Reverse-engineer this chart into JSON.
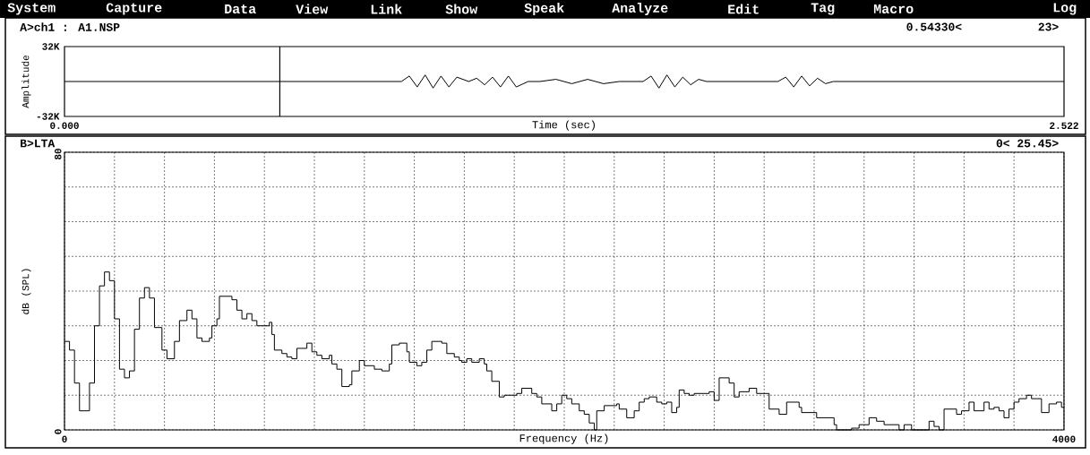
{
  "chart_data": [
    {
      "type": "line",
      "title": "A>ch1 : A1.NSP",
      "xlabel": "Time (sec)",
      "ylabel": "Amplitude",
      "color": "#000000",
      "annotations": [
        "System",
        "Capture",
        "Data",
        "View",
        "Link",
        "Show",
        "Speak",
        "Analyze",
        "Edit",
        "Tag",
        "Macro",
        "Log",
        "0.54330<",
        "23>"
      ],
      "x": [
        0,
        0.85,
        0.87,
        0.89,
        0.91,
        0.93,
        0.95,
        0.97,
        0.99,
        1.02,
        1.04,
        1.06,
        1.08,
        1.1,
        1.12,
        1.14,
        1.17,
        1.2,
        1.24,
        1.28,
        1.32,
        1.36,
        1.4,
        1.46,
        1.48,
        1.5,
        1.52,
        1.54,
        1.56,
        1.58,
        1.6,
        1.62,
        1.8,
        1.82,
        1.84,
        1.86,
        1.88,
        1.9,
        1.92,
        1.94,
        2.522
      ],
      "values": [
        0,
        0,
        5,
        -5,
        6,
        -6,
        5,
        -5,
        4,
        0,
        3,
        -3,
        4,
        -5,
        5,
        -5,
        0,
        0,
        2,
        -2,
        2,
        -2,
        0,
        0,
        5,
        -6,
        6,
        -5,
        4,
        -3,
        2,
        0,
        0,
        4,
        -5,
        5,
        -4,
        3,
        -2,
        0,
        0
      ],
      "xlim": [
        0,
        2.522
      ],
      "xticks": [
        {
          "value": 0,
          "label": "0.000"
        },
        {
          "value": 2.522,
          "label": "2.522"
        }
      ],
      "ylim": [
        -32,
        32
      ],
      "yticks": [
        {
          "value": -32,
          "label": "-32K"
        },
        {
          "value": 32,
          "label": "32K"
        }
      ],
      "ref_lines": [
        {
          "axis": "x",
          "value": 0.5433
        }
      ]
    },
    {
      "type": "step",
      "title": "B>LTA",
      "xlabel": "Frequency (Hz)",
      "ylabel": "dB (SPL)",
      "color": "#000000",
      "grid": true,
      "annotations": [
        "0< 25.45>"
      ],
      "x": [
        0,
        20,
        40,
        60,
        100,
        120,
        140,
        160,
        180,
        200,
        220,
        240,
        260,
        280,
        300,
        320,
        340,
        360,
        390,
        410,
        440,
        460,
        490,
        510,
        530,
        550,
        580,
        590,
        610,
        620,
        670,
        690,
        710,
        730,
        750,
        770,
        820,
        830,
        840,
        870,
        890,
        910,
        930,
        970,
        990,
        1010,
        1030,
        1060,
        1070,
        1090,
        1110,
        1140,
        1150,
        1180,
        1200,
        1240,
        1270,
        1300,
        1310,
        1340,
        1370,
        1380,
        1410,
        1430,
        1450,
        1470,
        1510,
        1530,
        1560,
        1580,
        1590,
        1610,
        1630,
        1660,
        1680,
        1690,
        1710,
        1740,
        1760,
        1810,
        1830,
        1860,
        1870,
        1890,
        1910,
        1950,
        1970,
        1990,
        2010,
        2030,
        2060,
        2080,
        2100,
        2120,
        2130,
        2160,
        2210,
        2220,
        2250,
        2280,
        2300,
        2320,
        2340,
        2370,
        2390,
        2410,
        2430,
        2450,
        2460,
        2480,
        2500,
        2520,
        2550,
        2580,
        2600,
        2620,
        2660,
        2680,
        2700,
        2740,
        2770,
        2820,
        2860,
        2890,
        2940,
        2950,
        3010,
        3080,
        3090,
        3150,
        3180,
        3220,
        3250,
        3280,
        3340,
        3360,
        3390,
        3460,
        3480,
        3500,
        3520,
        3570,
        3590,
        3620,
        3640,
        3680,
        3700,
        3720,
        3740,
        3760,
        3780,
        3800,
        3820,
        3850,
        3870,
        3910,
        3940,
        3970,
        3990,
        4000
      ],
      "values": [
        25.5,
        23,
        13.5,
        5.5,
        13.5,
        30,
        41.5,
        45.5,
        43,
        32,
        17.5,
        15,
        17,
        29,
        38,
        41,
        38,
        29.5,
        23,
        20.5,
        25.5,
        31.5,
        34.5,
        32,
        26.5,
        25.5,
        26.5,
        30,
        32,
        38.5,
        37.5,
        34.5,
        32,
        33.5,
        31.5,
        30,
        31,
        27.5,
        23,
        22,
        21,
        20.5,
        23.5,
        25,
        22.5,
        21.5,
        20.5,
        21.5,
        19,
        17.5,
        12.5,
        13,
        17,
        20,
        18.5,
        17.5,
        17,
        19,
        24.5,
        25,
        22.5,
        19.5,
        18.5,
        19.5,
        23,
        25.5,
        25,
        22,
        21,
        20,
        19.5,
        20.5,
        19.5,
        20.5,
        19,
        17,
        14,
        9.5,
        10,
        10.5,
        12,
        12,
        10.5,
        9.5,
        7.5,
        5.5,
        7.5,
        10,
        9,
        7.5,
        5.5,
        4.5,
        2,
        0,
        5.5,
        7,
        7.5,
        6,
        3.5,
        5.5,
        8,
        9,
        9.5,
        8,
        7.5,
        8,
        5,
        6.5,
        11.5,
        10.5,
        10,
        10.5,
        10.5,
        11,
        8.5,
        15,
        13.5,
        9.5,
        11,
        12,
        10.5,
        6,
        4.5,
        8,
        6.5,
        5,
        3.5,
        1.5,
        0,
        0.5,
        1.5,
        3.5,
        2.5,
        1.5,
        0,
        1.5,
        0,
        2.5,
        1,
        0,
        6,
        4.5,
        5.5,
        8,
        5.5,
        8,
        6,
        6.5,
        5.5,
        3.5,
        6,
        8,
        9,
        10,
        9,
        5,
        7.5,
        8,
        6.5,
        6.5
      ],
      "xlim": [
        0,
        4000
      ],
      "xticks": [
        0,
        {
          "value": 200,
          "label": null
        },
        {
          "value": 400,
          "label": null
        },
        {
          "value": 600,
          "label": null
        },
        {
          "value": 800,
          "label": null
        },
        {
          "value": 1000,
          "label": null
        },
        {
          "value": 1200,
          "label": null
        },
        {
          "value": 1400,
          "label": null
        },
        {
          "value": 1600,
          "label": null
        },
        {
          "value": 1800,
          "label": null
        },
        {
          "value": 2000,
          "label": null
        },
        {
          "value": 2200,
          "label": null
        },
        {
          "value": 2400,
          "label": null
        },
        {
          "value": 2600,
          "label": null
        },
        {
          "value": 2800,
          "label": null
        },
        {
          "value": 3000,
          "label": null
        },
        {
          "value": 3200,
          "label": null
        },
        {
          "value": 3400,
          "label": null
        },
        {
          "value": 3600,
          "label": null
        },
        {
          "value": 3800,
          "label": null
        },
        4000
      ],
      "ylim": [
        0,
        80
      ],
      "yticks": [
        0,
        {
          "value": 10,
          "label": null
        },
        {
          "value": 20,
          "label": null
        },
        {
          "value": 30,
          "label": null
        },
        {
          "value": 40,
          "label": null
        },
        {
          "value": 50,
          "label": null
        },
        {
          "value": 60,
          "label": null
        },
        {
          "value": 70,
          "label": null
        },
        80
      ]
    }
  ]
}
